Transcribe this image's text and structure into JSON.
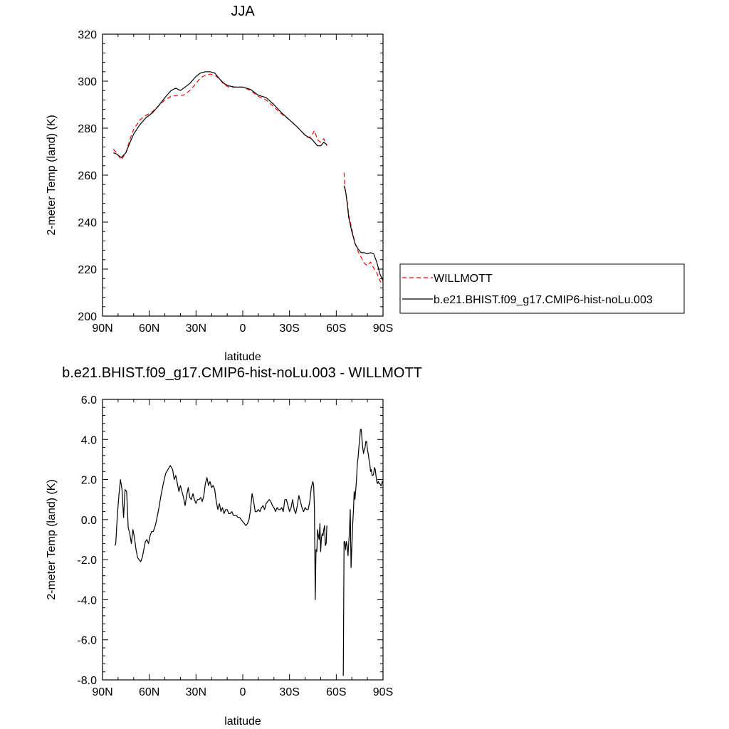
{
  "chart_data": [
    {
      "type": "line",
      "title": "JJA",
      "xlabel": "latitude",
      "ylabel": "2-meter Temp (land) (K)",
      "xlim": [
        90,
        -90
      ],
      "ylim": [
        200,
        320
      ],
      "x_ticks": [
        90,
        60,
        30,
        0,
        -30,
        -60,
        -90
      ],
      "x_tick_labels": [
        "90N",
        "60N",
        "30N",
        "0",
        "30S",
        "60S",
        "90S"
      ],
      "y_ticks": [
        200,
        220,
        240,
        260,
        280,
        300,
        320
      ],
      "y_tick_labels": [
        "200",
        "220",
        "240",
        "260",
        "280",
        "300",
        "320"
      ],
      "grid": false,
      "legend_position": "outside-right",
      "series": [
        {
          "name": "WILLMOTT",
          "color": "#ff0000",
          "dash": "dashed",
          "segments": [
            {
              "x": [
                83,
                81,
                78,
                75,
                72,
                70,
                66,
                62,
                58,
                54,
                50,
                46,
                42,
                38,
                34,
                30,
                27,
                24,
                21,
                18,
                15,
                12,
                9,
                5,
                0,
                -5,
                -10,
                -15,
                -20,
                -25,
                -30,
                -35,
                -40,
                -42,
                -44,
                -46,
                -48,
                -50,
                -52,
                -54
              ],
              "y": [
                271,
                269.5,
                266.5,
                269.5,
                276,
                279.5,
                283.5,
                285.5,
                287,
                289.5,
                292,
                293.5,
                294,
                294,
                296,
                299,
                301.5,
                302.5,
                303,
                302.5,
                301,
                298.5,
                297.5,
                297.5,
                297.5,
                296,
                293.5,
                292,
                289,
                286,
                283.5,
                280.5,
                277,
                276,
                276.5,
                279,
                275,
                274,
                275.5,
                272.5
              ]
            },
            {
              "x": [
                -65,
                -65.5,
                -66,
                -67,
                -68,
                -70,
                -72,
                -74,
                -76,
                -78,
                -80,
                -82,
                -84,
                -86,
                -88,
                -90
              ],
              "y": [
                261,
                255,
                253,
                249,
                243,
                237,
                231,
                227.5,
                225,
                222.5,
                221.5,
                223,
                220.5,
                218.5,
                215,
                213.5
              ]
            }
          ]
        },
        {
          "name": "b.e21.BHIST.f09_g17.CMIP6-hist-noLu.003",
          "color": "#000000",
          "dash": "solid",
          "segments": [
            {
              "x": [
                83,
                81,
                78,
                75,
                72,
                70,
                66,
                62,
                58,
                54,
                50,
                46,
                43,
                40,
                37,
                34,
                30,
                27,
                24,
                21,
                18,
                15,
                12,
                9,
                5,
                0,
                -5,
                -10,
                -15,
                -20,
                -25,
                -30,
                -35,
                -40,
                -44,
                -48,
                -50,
                -52,
                -54
              ],
              "y": [
                269.5,
                269,
                267.5,
                269.5,
                274.5,
                277.5,
                281.5,
                284.5,
                286.5,
                289.5,
                293,
                296,
                297,
                296,
                297.5,
                299,
                302,
                303.5,
                304,
                304,
                303.5,
                301,
                299,
                298,
                297.5,
                297.5,
                296.5,
                294,
                293,
                290,
                286.5,
                283.5,
                280.5,
                277,
                275.5,
                272.5,
                272.5,
                274,
                273
              ]
            },
            {
              "x": [
                -65,
                -66,
                -67,
                -68,
                -70,
                -72,
                -74,
                -76,
                -78,
                -80,
                -82,
                -84,
                -86,
                -88,
                -90
              ],
              "y": [
                255.5,
                253,
                248,
                242,
                236,
                231,
                228.5,
                227,
                227,
                226.5,
                227,
                226.5,
                223,
                218,
                215
              ]
            }
          ]
        }
      ]
    },
    {
      "type": "line",
      "title": "b.e21.BHIST.f09_g17.CMIP6-hist-noLu.003 - WILLMOTT",
      "xlabel": "latitude",
      "ylabel": "2-meter Temp (land) (K)",
      "xlim": [
        90,
        -90
      ],
      "ylim": [
        -8,
        6
      ],
      "x_ticks": [
        90,
        60,
        30,
        0,
        -30,
        -60,
        -90
      ],
      "x_tick_labels": [
        "90N",
        "60N",
        "30N",
        "0",
        "30S",
        "60S",
        "90S"
      ],
      "y_ticks": [
        -8,
        -6,
        -4,
        -2,
        0,
        2,
        4,
        6
      ],
      "y_tick_labels": [
        "-8.0",
        "-6.0",
        "-4.0",
        "-2.0",
        "0.0",
        "2.0",
        "4.0",
        "6.0"
      ],
      "grid": false,
      "series": [
        {
          "color": "#000000",
          "dash": "solid",
          "segments": [
            {
              "x": [
                82,
                81.5,
                80.5,
                79.5,
                78.5,
                77.5,
                76.5,
                76,
                75.5,
                74.5,
                73.5,
                72.5,
                71.5,
                70.5,
                69.5,
                68.5,
                67.5,
                66.5,
                65.5,
                64.5,
                63.5,
                62.5,
                61.5,
                60.5,
                59.5,
                58.5,
                57.5,
                56.5,
                55.5,
                54,
                52.5,
                51,
                49.5,
                48,
                46.5,
                45,
                44,
                43,
                42,
                41,
                40,
                39,
                38,
                37,
                36,
                35,
                34,
                33,
                32,
                31,
                30,
                29,
                28,
                27,
                26,
                25,
                24,
                23,
                22,
                21,
                20,
                19,
                18,
                17,
                16,
                15,
                14,
                13,
                12,
                11,
                10,
                9,
                8,
                7,
                6,
                5,
                4,
                3,
                2,
                1,
                0,
                -1,
                -2,
                -3,
                -4,
                -5,
                -6,
                -7,
                -8,
                -9,
                -10,
                -11,
                -12,
                -13,
                -14,
                -15,
                -16,
                -17,
                -18,
                -19,
                -20,
                -21,
                -22,
                -23,
                -24,
                -25,
                -26,
                -27,
                -28,
                -29,
                -30,
                -31,
                -32,
                -33,
                -34,
                -35,
                -36,
                -37,
                -38,
                -39,
                -40,
                -41,
                -42,
                -43,
                -44,
                -45,
                -45.5,
                -46,
                -46.5,
                -47,
                -47.5,
                -48,
                -48.5,
                -49,
                -49.5,
                -50,
                -50.5,
                -51,
                -51.5,
                -52,
                -52.5,
                -53,
                -53.5,
                -54
              ],
              "y": [
                -1.3,
                -1.2,
                0.2,
                1.2,
                2.0,
                1.5,
                0.1,
                0.8,
                1.5,
                1.4,
                -0.4,
                -0.7,
                -1.2,
                -0.5,
                -0.9,
                -1.5,
                -1.9,
                -2.0,
                -2.1,
                -1.9,
                -1.5,
                -1.1,
                -1.0,
                -1.2,
                -0.8,
                -0.6,
                -0.6,
                -0.4,
                -0.1,
                0.5,
                1.2,
                1.8,
                2.3,
                2.5,
                2.7,
                2.5,
                2.0,
                2.2,
                1.8,
                1.4,
                1.7,
                1.4,
                1.1,
                0.7,
                1.2,
                1.6,
                1.1,
                1.0,
                1.3,
                1.0,
                0.8,
                1.0,
                1.0,
                1.1,
                0.9,
                1.2,
                1.8,
                2.1,
                1.7,
                1.9,
                1.6,
                1.7,
                1.5,
                0.9,
                0.5,
                0.8,
                0.4,
                0.6,
                0.3,
                0.5,
                0.5,
                0.3,
                0.3,
                0.4,
                0.2,
                0.2,
                0.2,
                0.1,
                0.1,
                0.0,
                -0.1,
                -0.2,
                -0.3,
                -0.2,
                0.0,
                0.5,
                1.3,
                0.9,
                0.4,
                0.4,
                0.5,
                0.4,
                0.6,
                0.7,
                0.5,
                0.8,
                0.9,
                1.0,
                0.9,
                0.7,
                0.6,
                0.4,
                0.6,
                0.5,
                0.5,
                0.6,
                0.4,
                1.0,
                1.0,
                0.7,
                0.4,
                0.6,
                1.0,
                0.5,
                0.3,
                0.7,
                1.2,
                0.9,
                0.6,
                0.4,
                0.6,
                0.5,
                0.5,
                0.9,
                1.6,
                1.9,
                1.7,
                0.5,
                -4.0,
                -1.5,
                -1.6,
                -0.5,
                -0.8,
                -1.0,
                -0.2,
                -1.6,
                -0.9,
                -0.7,
                -0.8,
                -0.5,
                -0.3,
                -1.3,
                -1.2,
                -0.3
              ]
            },
            {
              "x": [
                -64.5,
                -65,
                -65.5,
                -66,
                -66.5,
                -67,
                -67.5,
                -68,
                -68.5,
                -69,
                -69.5,
                -70,
                -70.5,
                -71,
                -71.5,
                -72,
                -72.5,
                -73,
                -73.5,
                -74,
                -74.5,
                -75,
                -75.5,
                -76,
                -76.5,
                -77,
                -77.5,
                -78,
                -78.5,
                -79,
                -79.5,
                -80,
                -80.5,
                -81,
                -81.5,
                -82,
                -82.5,
                -83,
                -83.5,
                -84,
                -84.5,
                -85,
                -85.5,
                -86,
                -86.5,
                -87,
                -87.5,
                -88,
                -88.5,
                -89,
                -89.5,
                -90
              ],
              "y": [
                -7.8,
                -1.1,
                -1.1,
                -1.5,
                -1.1,
                -1.3,
                -1.8,
                -1.2,
                -0.6,
                0.5,
                -2.4,
                -1.4,
                -0.3,
                0.4,
                1.4,
                1.0,
                1.5,
                2.0,
                2.8,
                3.1,
                3.6,
                4.0,
                4.5,
                4.5,
                4.0,
                3.6,
                3.3,
                3.5,
                3.6,
                3.9,
                3.9,
                3.5,
                3.3,
                3.0,
                2.8,
                2.4,
                2.5,
                2.2,
                2.2,
                2.3,
                2.6,
                2.5,
                2.2,
                1.9,
                1.8,
                1.9,
                1.8,
                1.8,
                1.7,
                1.7,
                1.9,
                1.8
              ]
            }
          ]
        }
      ]
    }
  ]
}
